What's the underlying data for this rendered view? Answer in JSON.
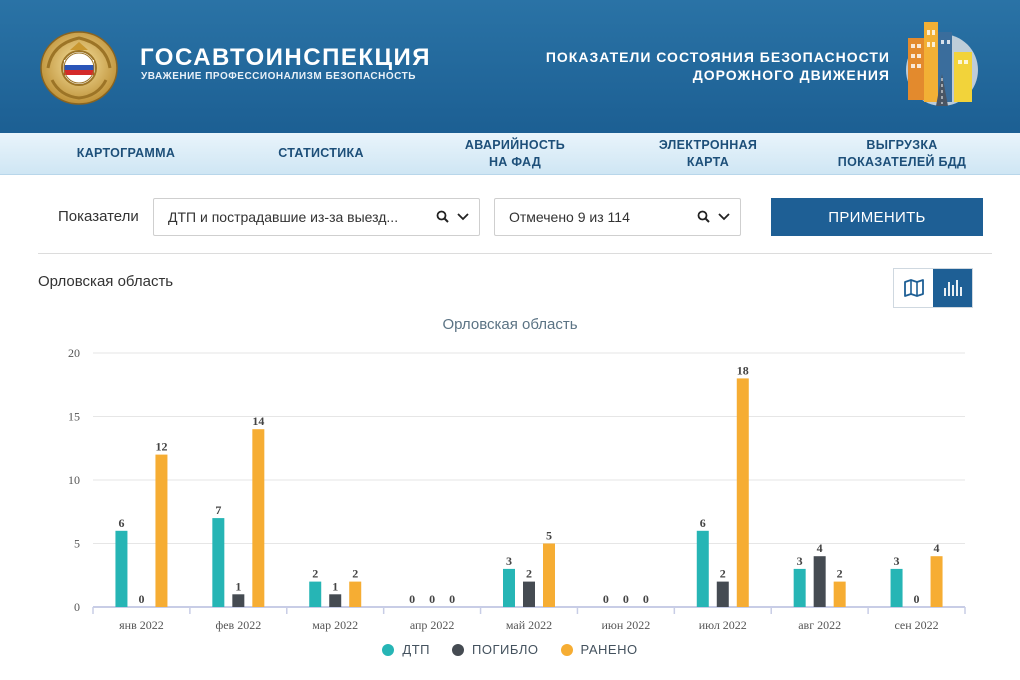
{
  "header": {
    "brand_title": "ГОСАВТОИНСПЕКЦИЯ",
    "brand_subtitle": "УВАЖЕНИЕ ПРОФЕССИОНАЛИЗМ БЕЗОПАСНОСТЬ",
    "portal_line1": "ПОКАЗАТЕЛИ СОСТОЯНИЯ БЕЗОПАСНОСТИ",
    "portal_line2": "ДОРОЖНОГО ДВИЖЕНИЯ"
  },
  "nav": {
    "items": [
      {
        "label": "КАРТОГРАММА"
      },
      {
        "label": "СТАТИСТИКА"
      },
      {
        "label": "АВАРИЙНОСТЬ\nНА ФАД"
      },
      {
        "label": "ЭЛЕКТРОННАЯ\nКАРТА"
      },
      {
        "label": "ВЫГРУЗКА\nПОКАЗАТЕЛЕЙ БДД"
      }
    ]
  },
  "filters": {
    "label": "Показатели",
    "indicator_value": "ДТП и пострадавшие из-за выезд...",
    "region_value": "Отмечено 9 из 114",
    "apply_label": "ПРИМЕНИТЬ"
  },
  "region_title": "Орловская область",
  "colors": {
    "dtp": "#26b5b5",
    "killed": "#454b52",
    "injured": "#f6ad33",
    "accent": "#1e5f95"
  },
  "chart_data": {
    "type": "bar",
    "title": "Орловская область",
    "categories": [
      "янв 2022",
      "фев 2022",
      "мар 2022",
      "апр 2022",
      "май 2022",
      "июн 2022",
      "июл 2022",
      "авг 2022",
      "сен 2022"
    ],
    "series": [
      {
        "name": "ДТП",
        "values": [
          6,
          7,
          2,
          0,
          3,
          0,
          6,
          3,
          3
        ]
      },
      {
        "name": "ПОГИБЛО",
        "values": [
          0,
          1,
          1,
          0,
          2,
          0,
          2,
          4,
          0
        ]
      },
      {
        "name": "РАНЕНО",
        "values": [
          12,
          14,
          2,
          0,
          5,
          0,
          18,
          2,
          4
        ]
      }
    ],
    "ylim": [
      0,
      20
    ],
    "yticks": [
      0,
      5,
      10,
      15,
      20
    ],
    "grid": true,
    "legend": "bottom-center"
  }
}
